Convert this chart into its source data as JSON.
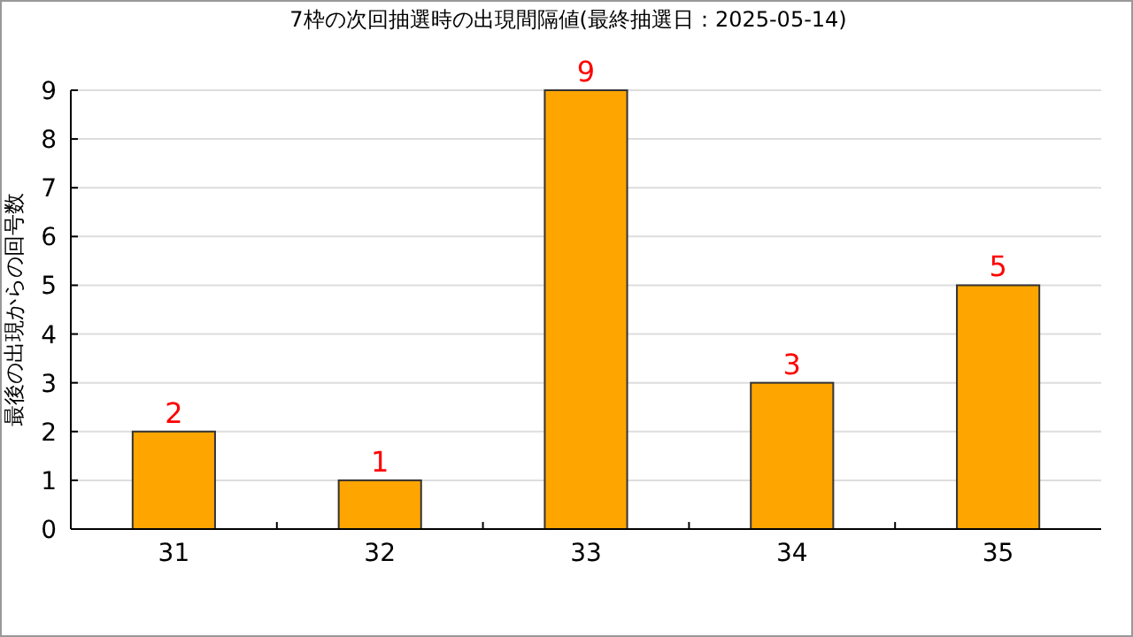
{
  "chart_data": {
    "type": "bar",
    "title": "7枠の次回抽選時の出現間隔値(最終抽選日：2025-05-14)",
    "ylabel": "最後の出現からの回号数",
    "categories": [
      "31",
      "32",
      "33",
      "34",
      "35"
    ],
    "values": [
      2,
      1,
      9,
      3,
      5
    ],
    "color": "#ffa500",
    "ylim": [
      0,
      9
    ],
    "yticks": [
      0,
      1,
      2,
      3,
      4,
      5,
      6,
      7,
      8,
      9
    ],
    "grid": "y",
    "data_labels": true
  }
}
